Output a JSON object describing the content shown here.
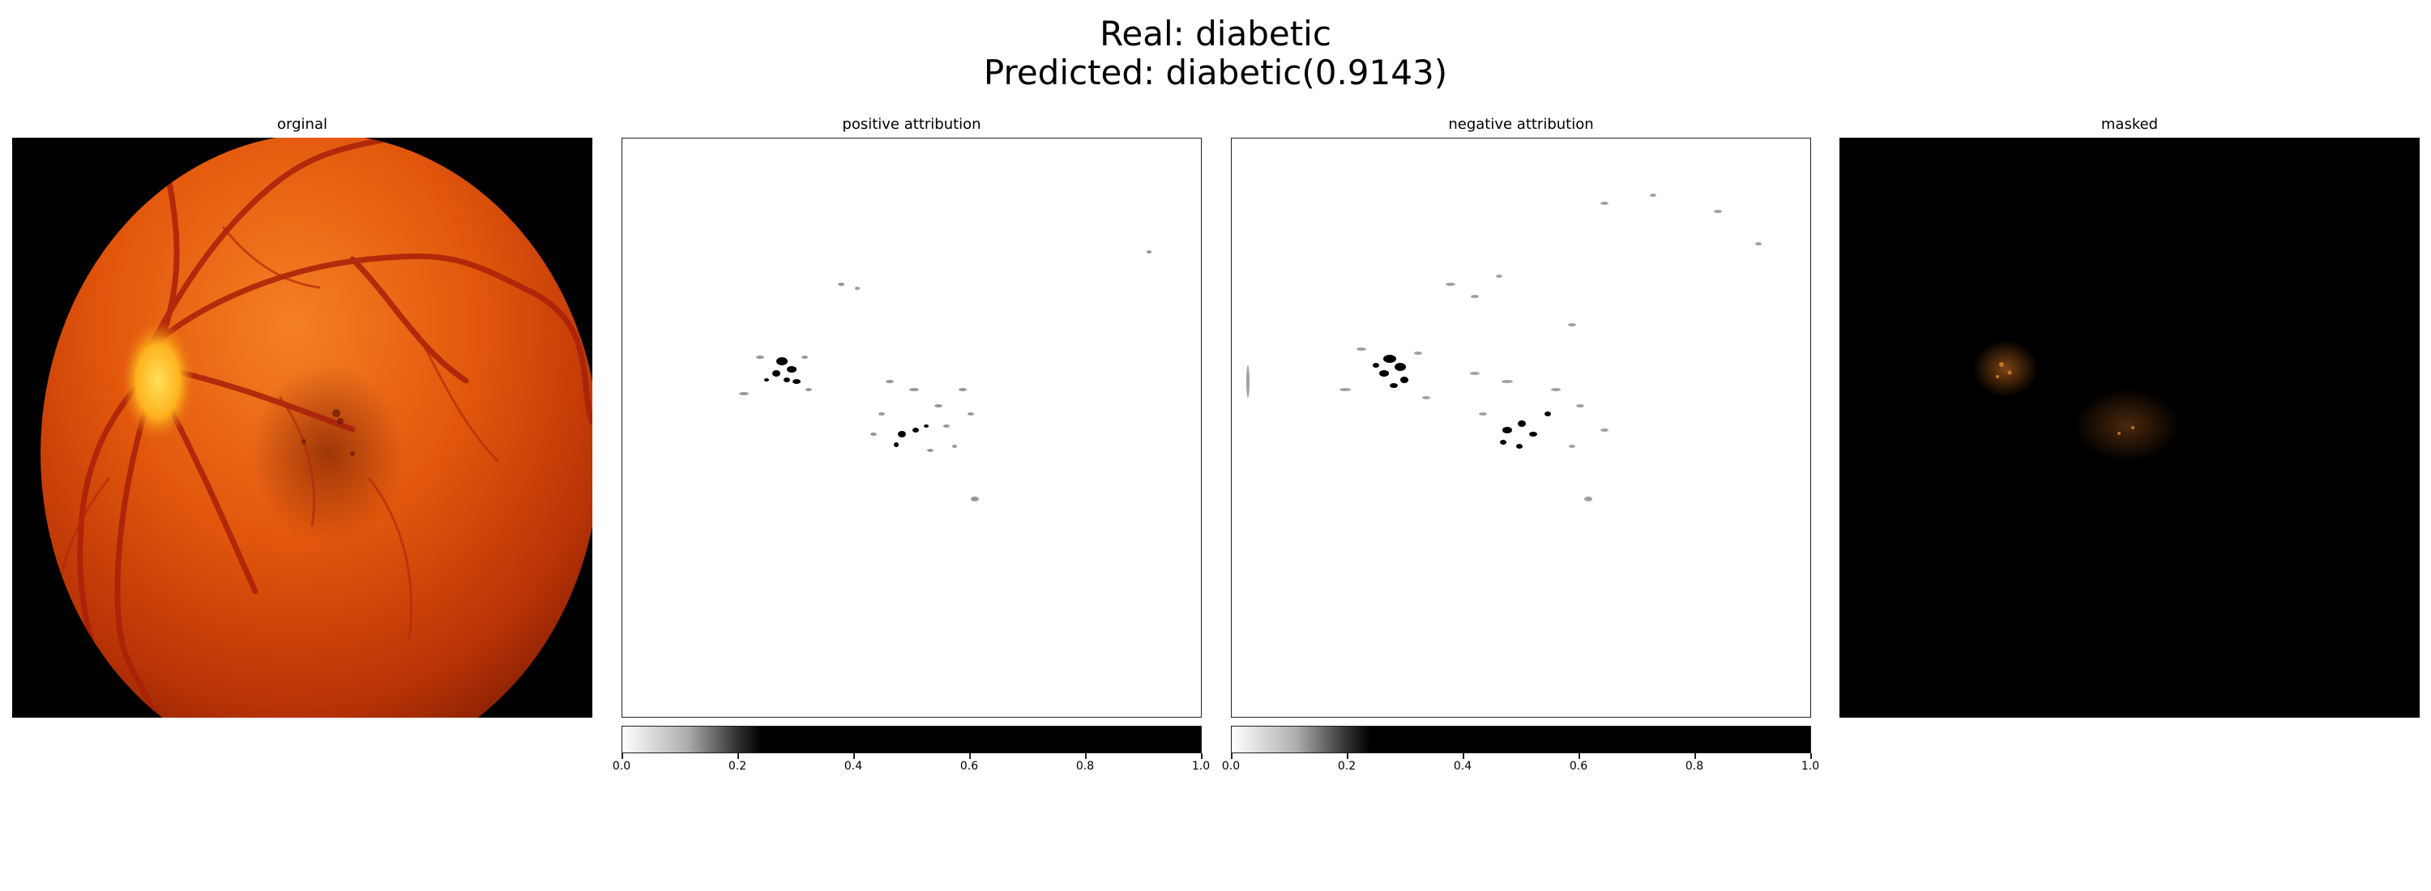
{
  "figure": {
    "title_line1": "Real: diabetic",
    "title_line2": "Predicted: diabetic(0.9143)"
  },
  "panels": [
    {
      "title": "orginal"
    },
    {
      "title": "positive attribution"
    },
    {
      "title": "negative attribution"
    },
    {
      "title": "masked"
    }
  ],
  "colorbar": {
    "ticks": [
      "0.0",
      "0.2",
      "0.4",
      "0.6",
      "0.8",
      "1.0"
    ]
  },
  "colors": {
    "background": "#ffffff",
    "retina_center": "#f07418",
    "retina_edge": "#7a1a02",
    "optic_disc": "#ffd23a",
    "masked_highlight": "#b5601c"
  }
}
